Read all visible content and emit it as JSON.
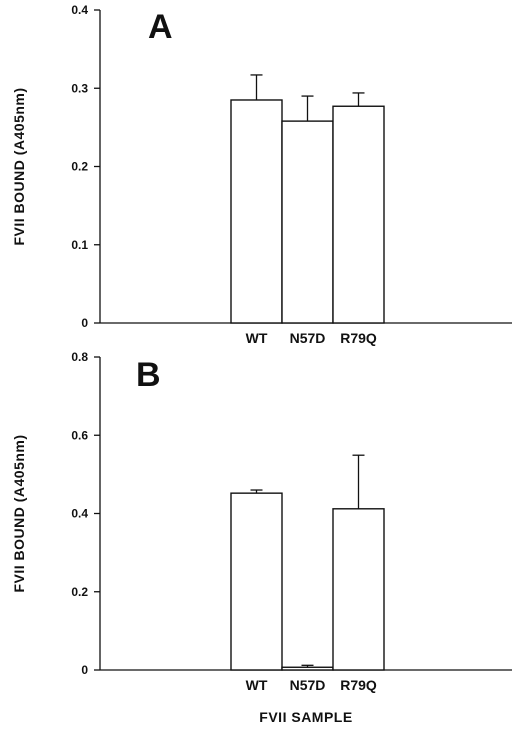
{
  "chart_data": [
    {
      "panel": "A",
      "type": "bar",
      "categories": [
        "WT",
        "N57D",
        "R79Q"
      ],
      "values": [
        0.285,
        0.258,
        0.277
      ],
      "errors": [
        0.032,
        0.032,
        0.017
      ],
      "ylabel": "FVII BOUND (A405nm)",
      "xlabel": "",
      "ylim": [
        0,
        0.4
      ],
      "yticks": [
        "0",
        "0.1",
        "0.2",
        "0.3",
        "0.4"
      ],
      "grid": false
    },
    {
      "panel": "B",
      "type": "bar",
      "categories": [
        "WT",
        "N57D",
        "R79Q"
      ],
      "values": [
        0.452,
        0.007,
        0.412
      ],
      "errors": [
        0.008,
        0.005,
        0.137
      ],
      "ylabel": "FVII BOUND (A405nm)",
      "xlabel": "FVII SAMPLE",
      "ylim": [
        0,
        0.8
      ],
      "yticks": [
        "0",
        "0.2",
        "0.4",
        "0.6",
        "0.8"
      ],
      "grid": false
    }
  ]
}
